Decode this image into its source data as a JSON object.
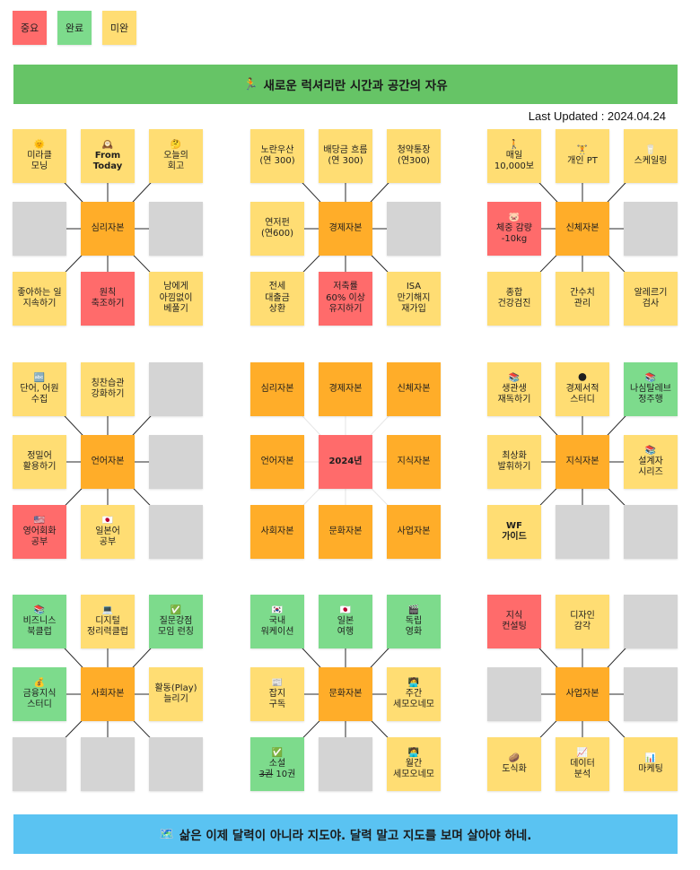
{
  "colors": {
    "important": "#ff6b6b",
    "done": "#7ddb8c",
    "notdone": "#ffdd73",
    "center": "#ffad29",
    "empty": "#d4d4d4",
    "banner_top": "#66c466",
    "banner_bottom": "#5ac3f2",
    "line": "#2a2a2a",
    "line_light": "#e6e6e6"
  },
  "legend": [
    {
      "label": "중요",
      "kind": "important"
    },
    {
      "label": "완료",
      "kind": "done"
    },
    {
      "label": "미완",
      "kind": "notdone"
    }
  ],
  "top_banner": {
    "icon": "🏃",
    "text": "새로운 럭셔리란 시간과 공간의 자유"
  },
  "last_updated": "Last Updated : 2024.04.24",
  "bottom_banner": {
    "icon": "🗺️",
    "text": "삶은 이제 달력이 아니라 지도야. 달력 말고 지도를 보며 살아야 하네."
  },
  "grids": [
    {
      "center": "심리자본",
      "cells": [
        {
          "icon": "🌞",
          "text": "미라클\n모닝",
          "kind": "notdone"
        },
        {
          "icon": "🕰️",
          "text": "From\nToday",
          "kind": "notdone",
          "bold": true
        },
        {
          "icon": "🤔",
          "text": "오늘의\n회고",
          "kind": "notdone"
        },
        {
          "icon": "",
          "text": "",
          "kind": "empty"
        },
        {
          "icon": "",
          "text": "",
          "kind": "empty"
        },
        {
          "icon": "",
          "text": "좋아하는 일\n지속하기",
          "kind": "notdone"
        },
        {
          "icon": "",
          "text": "원칙\n축조하기",
          "kind": "important"
        },
        {
          "icon": "",
          "text": "남에게\n아낌없이\n베풀기",
          "kind": "notdone"
        }
      ]
    },
    {
      "center": "경제자본",
      "cells": [
        {
          "icon": "",
          "text": "노란우산\n(연 300)",
          "kind": "notdone"
        },
        {
          "icon": "",
          "text": "배당금 흐름\n(연 300)",
          "kind": "notdone"
        },
        {
          "icon": "",
          "text": "청약통장\n(연300)",
          "kind": "notdone"
        },
        {
          "icon": "",
          "text": "연저펀\n(연600)",
          "kind": "notdone"
        },
        {
          "icon": "",
          "text": "",
          "kind": "empty"
        },
        {
          "icon": "",
          "text": "전세\n대출금\n상환",
          "kind": "notdone"
        },
        {
          "icon": "",
          "text": "저축률\n60% 이상\n유지하기",
          "kind": "important"
        },
        {
          "icon": "",
          "text": "ISA\n만기해지\n재가입",
          "kind": "notdone"
        }
      ]
    },
    {
      "center": "신체자본",
      "cells": [
        {
          "icon": "🚶",
          "text": "매일\n10,000보",
          "kind": "notdone"
        },
        {
          "icon": "🏋️",
          "text": "개인 PT",
          "kind": "notdone"
        },
        {
          "icon": "🥛",
          "text": "스케일링",
          "kind": "notdone"
        },
        {
          "icon": "🐷",
          "text": "체중 감량\n-10kg",
          "kind": "important"
        },
        {
          "icon": "",
          "text": "",
          "kind": "empty"
        },
        {
          "icon": "",
          "text": "종합\n건강검진",
          "kind": "notdone"
        },
        {
          "icon": "",
          "text": "간수치\n관리",
          "kind": "notdone"
        },
        {
          "icon": "",
          "text": "알레르기\n검사",
          "kind": "notdone"
        }
      ]
    },
    {
      "center": "언어자본",
      "cells": [
        {
          "icon": "🔤",
          "text": "단어, 어원\n수집",
          "kind": "notdone"
        },
        {
          "icon": "",
          "text": "칭찬습관\n강화하기",
          "kind": "notdone"
        },
        {
          "icon": "",
          "text": "",
          "kind": "empty"
        },
        {
          "icon": "",
          "text": "정밀어\n활용하기",
          "kind": "notdone"
        },
        {
          "icon": "",
          "text": "",
          "kind": "empty"
        },
        {
          "icon": "🇺🇸",
          "text": "영어회화\n공부",
          "kind": "important"
        },
        {
          "icon": "🇯🇵",
          "text": "일본어\n공부",
          "kind": "notdone"
        },
        {
          "icon": "",
          "text": "",
          "kind": "empty"
        }
      ]
    },
    {
      "center": "2024년",
      "core": true,
      "cells": [
        {
          "icon": "",
          "text": "심리자본",
          "kind": "center"
        },
        {
          "icon": "",
          "text": "경제자본",
          "kind": "center"
        },
        {
          "icon": "",
          "text": "신체자본",
          "kind": "center"
        },
        {
          "icon": "",
          "text": "언어자본",
          "kind": "center"
        },
        {
          "icon": "",
          "text": "지식자본",
          "kind": "center"
        },
        {
          "icon": "",
          "text": "사회자본",
          "kind": "center"
        },
        {
          "icon": "",
          "text": "문화자본",
          "kind": "center"
        },
        {
          "icon": "",
          "text": "사업자본",
          "kind": "center"
        }
      ]
    },
    {
      "center": "지식자본",
      "cells": [
        {
          "icon": "📚",
          "text": "생관생\n재독하기",
          "kind": "notdone"
        },
        {
          "icon": "🌑",
          "text": "경제서적\n스터디",
          "kind": "notdone"
        },
        {
          "icon": "📚",
          "text": "나심탈레브\n정주행",
          "kind": "done"
        },
        {
          "icon": "",
          "text": "최상화\n발휘하기",
          "kind": "notdone"
        },
        {
          "icon": "📚",
          "text": "설계자\n시리즈",
          "kind": "notdone"
        },
        {
          "icon": "",
          "text": "WF\n가이드",
          "kind": "notdone",
          "bold": true
        },
        {
          "icon": "",
          "text": "",
          "kind": "empty"
        },
        {
          "icon": "",
          "text": "",
          "kind": "empty"
        }
      ]
    },
    {
      "center": "사회자본",
      "cells": [
        {
          "icon": "📚",
          "text": "비즈니스\n북클럽",
          "kind": "done"
        },
        {
          "icon": "💻",
          "text": "디지털\n정리력클럽",
          "kind": "notdone"
        },
        {
          "icon": "✅",
          "text": "질문강점\n모임 런칭",
          "kind": "done"
        },
        {
          "icon": "💰",
          "text": "금융지식\n스터디",
          "kind": "done"
        },
        {
          "icon": "",
          "text": "활동(Play)\n늘리기",
          "kind": "notdone"
        },
        {
          "icon": "",
          "text": "",
          "kind": "empty"
        },
        {
          "icon": "",
          "text": "",
          "kind": "empty"
        },
        {
          "icon": "",
          "text": "",
          "kind": "empty"
        }
      ]
    },
    {
      "center": "문화자본",
      "cells": [
        {
          "icon": "🇰🇷",
          "text": "국내\n워케이션",
          "kind": "done"
        },
        {
          "icon": "🇯🇵",
          "text": "일본\n여행",
          "kind": "done"
        },
        {
          "icon": "🎬",
          "text": "독립\n영화",
          "kind": "done"
        },
        {
          "icon": "📰",
          "text": "잡지\n구독",
          "kind": "notdone"
        },
        {
          "icon": "🧑‍💻",
          "text": "주간\n세모오네모",
          "kind": "notdone"
        },
        {
          "icon": "✅",
          "text": "소설\n3권 10권",
          "kind": "done",
          "strike_part": "3권"
        },
        {
          "icon": "",
          "text": "",
          "kind": "empty"
        },
        {
          "icon": "🧑‍💻",
          "text": "월간\n세모오네모",
          "kind": "notdone"
        }
      ]
    },
    {
      "center": "사업자본",
      "cells": [
        {
          "icon": "",
          "text": "지식\n컨설팅",
          "kind": "important"
        },
        {
          "icon": "",
          "text": "디자인\n감각",
          "kind": "notdone"
        },
        {
          "icon": "",
          "text": "",
          "kind": "empty"
        },
        {
          "icon": "",
          "text": "",
          "kind": "empty"
        },
        {
          "icon": "",
          "text": "",
          "kind": "empty"
        },
        {
          "icon": "🥔",
          "text": "도식화",
          "kind": "notdone"
        },
        {
          "icon": "📈",
          "text": "데이터\n분석",
          "kind": "notdone"
        },
        {
          "icon": "📊",
          "text": "마케팅",
          "kind": "notdone"
        }
      ]
    }
  ]
}
